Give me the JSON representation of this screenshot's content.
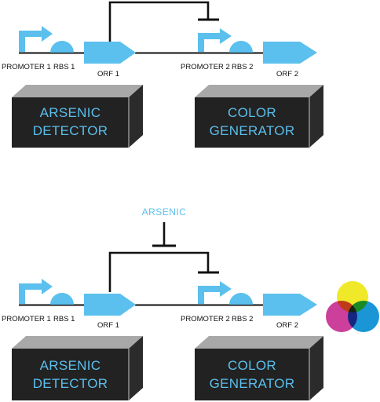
{
  "colors": {
    "accent": "#5bc0ee",
    "box_front": "#222222",
    "box_top": "#a8a8a8",
    "box_side": "#2b2b2b",
    "line": "#111111",
    "cyan_circle": "#1a96d6",
    "magenta_circle": "#cc3f9a",
    "yellow_circle": "#f0e92a"
  },
  "top_circuit": {
    "promoter1": "PROMOTER 1",
    "rbs1": "RBS 1",
    "orf1": "ORF 1",
    "promoter2": "PROMOTER 2",
    "rbs2": "RBS 2",
    "orf2": "ORF 2",
    "detector_box": {
      "line1": "ARSENIC",
      "line2": "DETECTOR"
    },
    "generator_box": {
      "line1": "COLOR",
      "line2": "GENERATOR"
    }
  },
  "bottom_circuit": {
    "arsenic_label": "ARSENIC",
    "promoter1": "PROMOTER 1",
    "rbs1": "RBS 1",
    "orf1": "ORF 1",
    "promoter2": "PROMOTER 2",
    "rbs2": "RBS 2",
    "orf2": "ORF 2",
    "detector_box": {
      "line1": "ARSENIC",
      "line2": "DETECTOR"
    },
    "generator_box": {
      "line1": "COLOR",
      "line2": "GENERATOR"
    },
    "color_output": [
      "yellow",
      "magenta",
      "cyan"
    ]
  }
}
